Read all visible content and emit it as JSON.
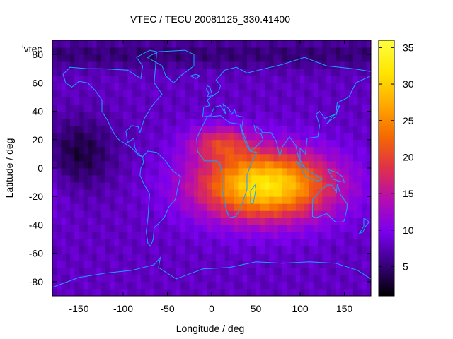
{
  "chart_data": {
    "type": "heatmap",
    "title": "VTEC / TECU 20081125_330.41400",
    "xlabel": "Longitude / deg",
    "ylabel": "Latitude / deg",
    "corner_label": "'vtec_",
    "xlim": [
      -180,
      180
    ],
    "ylim": [
      -90,
      90
    ],
    "x_ticks": [
      -150,
      -100,
      -50,
      0,
      50,
      100,
      150
    ],
    "x_tick_labels": [
      "-150",
      "-100",
      "-50",
      "0",
      "50",
      "100",
      "150"
    ],
    "y_ticks": [
      -80,
      -60,
      -40,
      -20,
      0,
      20,
      40,
      60,
      80
    ],
    "y_tick_labels": [
      "-80",
      "-60",
      "-40",
      "-20",
      "0",
      "20",
      "40",
      "60",
      "80"
    ],
    "colorbar": {
      "range": [
        1,
        36
      ],
      "ticks": [
        5,
        10,
        15,
        20,
        25,
        30,
        35
      ],
      "tick_labels": [
        "5",
        "10",
        "15",
        "20",
        "25",
        "30",
        "35"
      ],
      "palette": [
        "#000000",
        "#3a0080",
        "#7a00ee",
        "#b40cb2",
        "#e0304a",
        "#f56a00",
        "#ffaa00",
        "#ffe600",
        "#ffff40"
      ]
    },
    "grid": false,
    "grid_step_deg": [
      5,
      5
    ],
    "peak": {
      "lon": 60,
      "lat": -12,
      "value": 36
    },
    "background_value": 8,
    "overlay": "coastlines",
    "overlay_color": "#1aa0ff"
  }
}
